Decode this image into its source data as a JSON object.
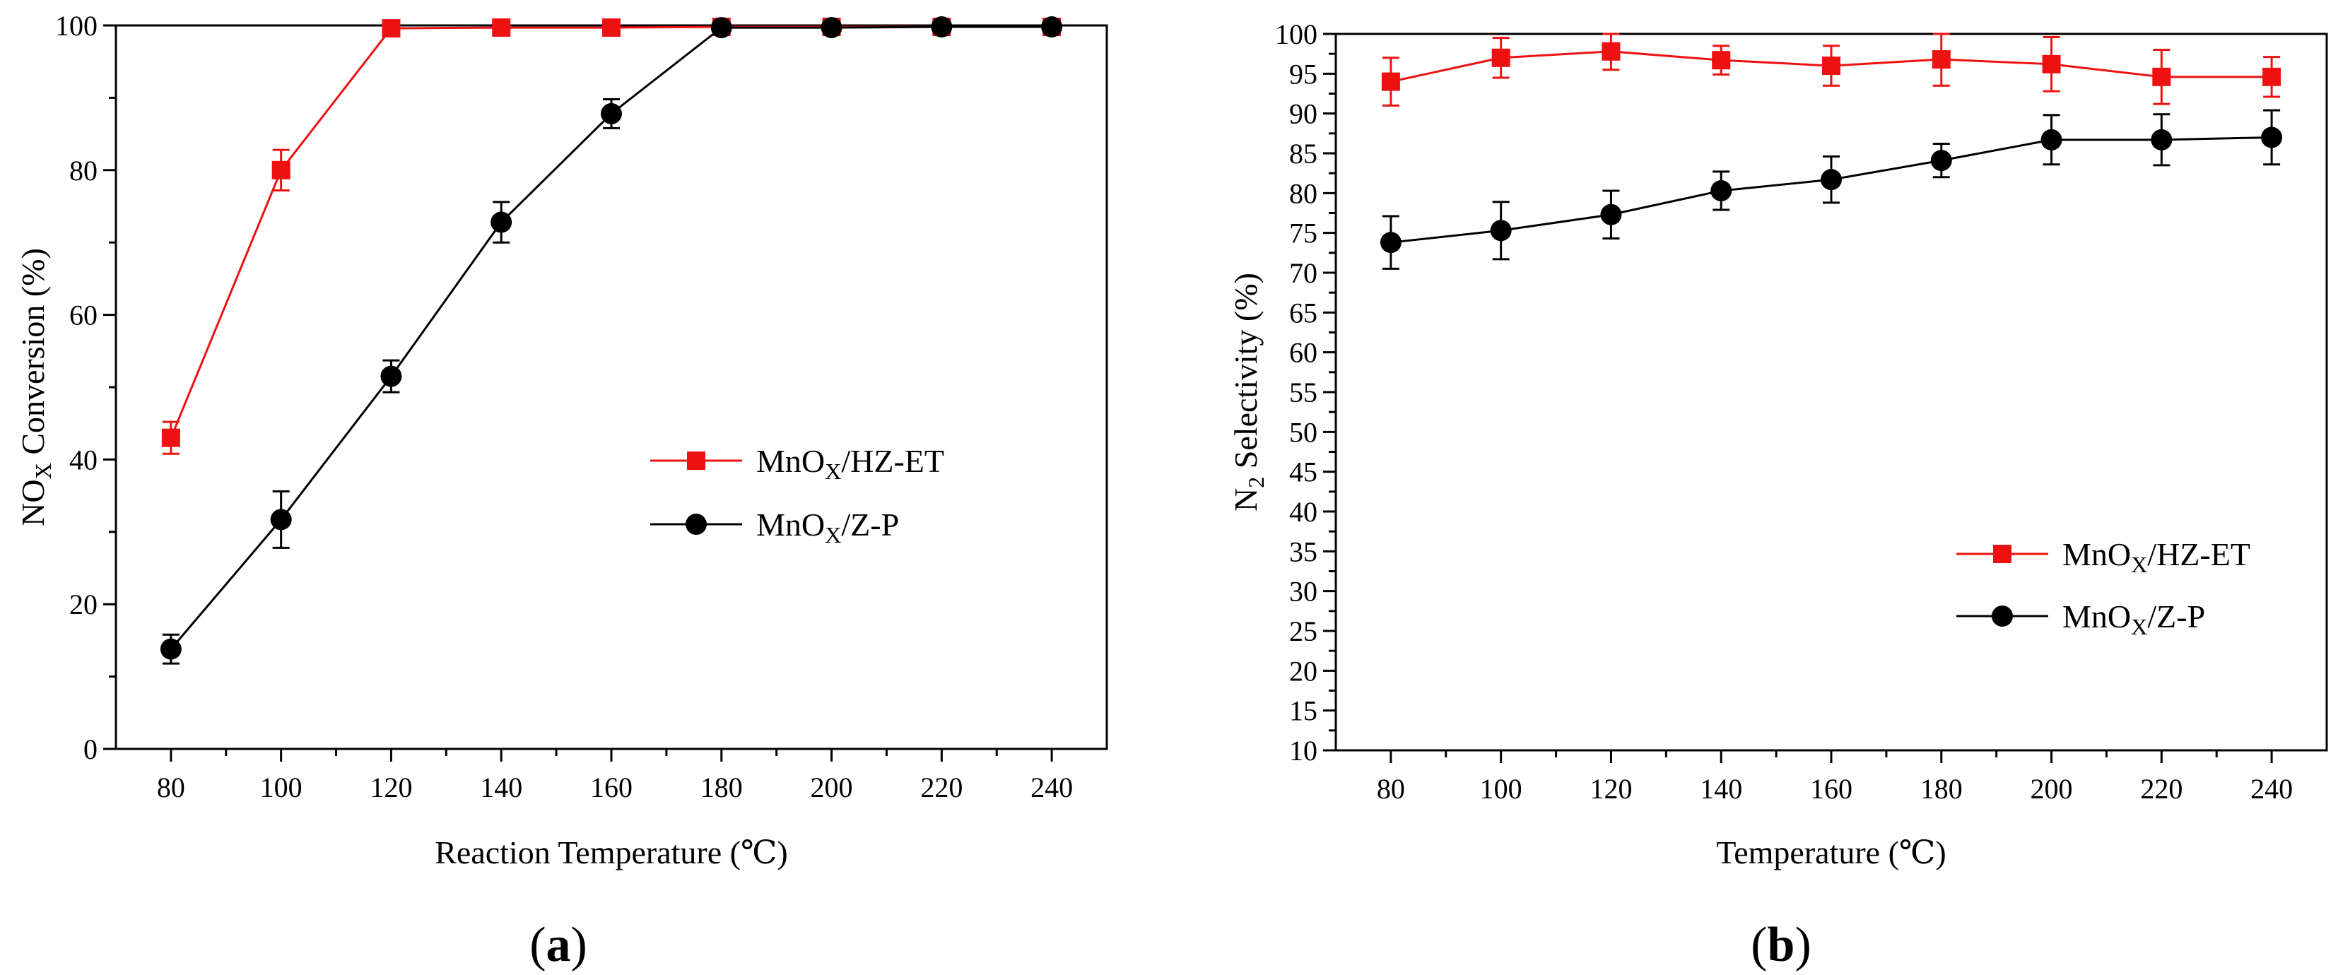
{
  "colors": {
    "red": "#ee1111",
    "black": "#000000"
  },
  "chart_data": [
    {
      "type": "line",
      "panel_label": "(a)",
      "panel_letter": "a",
      "xlabel": "Reaction Temperature (℃)",
      "ylabel_prefix": "NO",
      "ylabel_sub": "X",
      "ylabel_suffix": " Conversion (%)",
      "xlim": [
        70,
        250
      ],
      "ylim": [
        0,
        100
      ],
      "xticks": [
        80,
        100,
        120,
        140,
        160,
        180,
        200,
        220,
        240
      ],
      "yticks": [
        0,
        20,
        40,
        60,
        80,
        100
      ],
      "x": [
        80,
        100,
        120,
        140,
        160,
        180,
        200,
        220,
        240
      ],
      "legend_position": "center-right",
      "series": [
        {
          "name_prefix": "MnO",
          "name_sub": "X",
          "name_suffix": "/HZ-ET",
          "color": "#ee1111",
          "marker": "square",
          "values": [
            43,
            80,
            99.6,
            99.7,
            99.7,
            99.8,
            99.8,
            99.8,
            99.8
          ],
          "errors": [
            2.2,
            2.8,
            0.5,
            0.4,
            0.4,
            0.3,
            0.3,
            0.3,
            0.3
          ]
        },
        {
          "name_prefix": "MnO",
          "name_sub": "X",
          "name_suffix": "/Z-P",
          "color": "#000000",
          "marker": "circle",
          "values": [
            13.8,
            31.7,
            51.5,
            72.8,
            87.8,
            99.7,
            99.7,
            99.8,
            99.8
          ],
          "errors": [
            2.0,
            3.9,
            2.2,
            2.8,
            2.0,
            0.4,
            0.4,
            0.4,
            0.4
          ]
        }
      ]
    },
    {
      "type": "line",
      "panel_label": "(b)",
      "panel_letter": "b",
      "xlabel": "Temperature (℃)",
      "ylabel_prefix": "N",
      "ylabel_sub": "2",
      "ylabel_suffix": " Selectivity (%)",
      "xlim": [
        70,
        250
      ],
      "ylim": [
        10,
        100
      ],
      "xticks": [
        80,
        100,
        120,
        140,
        160,
        180,
        200,
        220,
        240
      ],
      "yticks": [
        10,
        15,
        20,
        25,
        30,
        35,
        40,
        45,
        50,
        55,
        60,
        65,
        70,
        75,
        80,
        85,
        90,
        95,
        100
      ],
      "x": [
        80,
        100,
        120,
        140,
        160,
        180,
        200,
        220,
        240
      ],
      "legend_position": "lower-right",
      "series": [
        {
          "name_prefix": "MnO",
          "name_sub": "X",
          "name_suffix": "/HZ-ET",
          "color": "#ee1111",
          "marker": "square",
          "values": [
            94,
            97,
            97.8,
            96.7,
            96,
            96.8,
            96.2,
            94.6,
            94.6
          ],
          "errors": [
            3.0,
            2.5,
            2.3,
            1.8,
            2.5,
            3.3,
            3.4,
            3.4,
            2.5
          ]
        },
        {
          "name_prefix": "MnO",
          "name_sub": "X",
          "name_suffix": "/Z-P",
          "color": "#000000",
          "marker": "circle",
          "values": [
            73.8,
            75.3,
            77.3,
            80.3,
            81.7,
            84.1,
            86.7,
            86.7,
            87
          ],
          "errors": [
            3.3,
            3.6,
            3.0,
            2.4,
            2.9,
            2.1,
            3.1,
            3.2,
            3.4
          ]
        }
      ]
    }
  ]
}
